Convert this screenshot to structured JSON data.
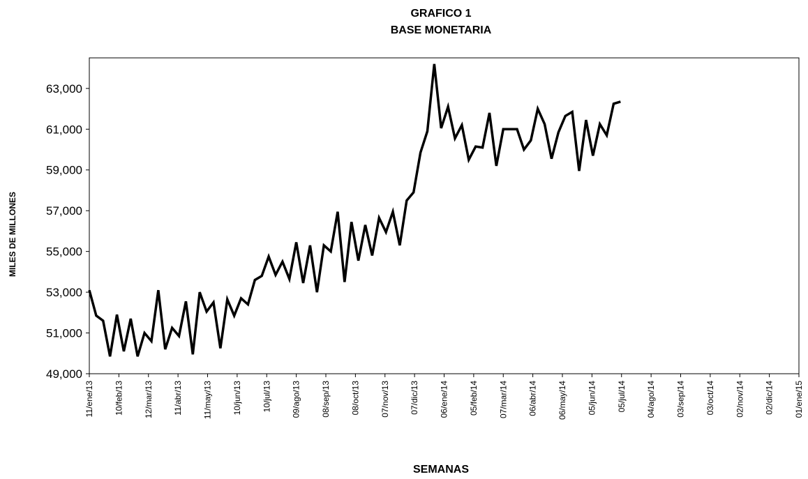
{
  "chart_data": {
    "type": "line",
    "title": "GRAFICO 1",
    "subtitle": "BASE MONETARIA",
    "x_label": "SEMANAS",
    "y_label": "MILES DE MILLONES",
    "color": "#000000",
    "x": [
      "11/ene/13",
      "18/ene/13",
      "25/ene/13",
      "01/feb/13",
      "08/feb/13",
      "15/feb/13",
      "22/feb/13",
      "01/mar/13",
      "08/mar/13",
      "15/mar/13",
      "22/mar/13",
      "29/mar/13",
      "05/abr/13",
      "12/abr/13",
      "19/abr/13",
      "26/abr/13",
      "03/may/13",
      "10/may/13",
      "17/may/13",
      "24/may/13",
      "31/may/13",
      "07/jun/13",
      "14/jun/13",
      "21/jun/13",
      "28/jun/13",
      "05/jul/13",
      "12/jul/13",
      "19/jul/13",
      "26/jul/13",
      "02/ago/13",
      "09/ago/13",
      "16/ago/13",
      "23/ago/13",
      "30/ago/13",
      "06/sep/13",
      "13/sep/13",
      "20/sep/13",
      "27/sep/13",
      "04/oct/13",
      "11/oct/13",
      "18/oct/13",
      "25/oct/13",
      "01/nov/13",
      "08/nov/13",
      "15/nov/13",
      "22/nov/13",
      "29/nov/13",
      "06/dic/13",
      "13/dic/13",
      "20/dic/13",
      "27/dic/13",
      "03/ene/14",
      "10/ene/14",
      "17/ene/14",
      "24/ene/14",
      "31/ene/14",
      "07/feb/14",
      "14/feb/14",
      "21/feb/14",
      "28/feb/14",
      "07/mar/14",
      "14/mar/14",
      "21/mar/14",
      "28/mar/14",
      "04/abr/14",
      "11/abr/14",
      "18/abr/14",
      "25/abr/14",
      "02/may/14",
      "09/may/14",
      "16/may/14",
      "23/may/14",
      "30/may/14",
      "06/jun/14",
      "13/jun/14",
      "20/jun/14",
      "27/jun/14",
      "04/jul/14"
    ],
    "values": [
      53100,
      51850,
      51600,
      49850,
      51900,
      50100,
      51700,
      49850,
      51000,
      50600,
      53100,
      50200,
      51250,
      50850,
      52550,
      49950,
      53000,
      52050,
      52500,
      50250,
      52650,
      51850,
      52700,
      52400,
      53600,
      53800,
      54750,
      53850,
      54500,
      53650,
      55450,
      53450,
      55300,
      53000,
      55300,
      55000,
      56950,
      53500,
      56450,
      54550,
      56300,
      54800,
      56650,
      55950,
      56950,
      55300,
      57500,
      57900,
      59850,
      60900,
      64200,
      61050,
      62100,
      60550,
      61200,
      59500,
      60150,
      60100,
      61800,
      59200,
      61000,
      61000,
      61000,
      60000,
      60450,
      62000,
      61250,
      59550,
      60850,
      61650,
      61850,
      58950,
      61450,
      59700,
      61250,
      60700,
      62250,
      62350
    ],
    "xlim": [
      "11/ene/13",
      "01/ene/15"
    ],
    "xticks": [
      "11/ene/13",
      "10/feb/13",
      "12/mar/13",
      "11/abr/13",
      "11/may/13",
      "10/jun/13",
      "10/jul/13",
      "09/ago/13",
      "08/sep/13",
      "08/oct/13",
      "07/nov/13",
      "07/dic/13",
      "06/ene/14",
      "05/feb/14",
      "07/mar/14",
      "06/abr/14",
      "06/may/14",
      "05/jun/14",
      "05/jul/14",
      "04/ago/14",
      "03/sep/14",
      "03/oct/14",
      "02/nov/14",
      "02/dic/14",
      "01/ene/15"
    ],
    "ylim": [
      49000,
      64500
    ],
    "yticks": [
      {
        "value": 49000,
        "label": "49,000"
      },
      {
        "value": 51000,
        "label": "51,000"
      },
      {
        "value": 53000,
        "label": "53,000"
      },
      {
        "value": 55000,
        "label": "55,000"
      },
      {
        "value": 57000,
        "label": "57,000"
      },
      {
        "value": 59000,
        "label": "59,000"
      },
      {
        "value": 61000,
        "label": "61,000"
      },
      {
        "value": 63000,
        "label": "63,000"
      }
    ]
  }
}
